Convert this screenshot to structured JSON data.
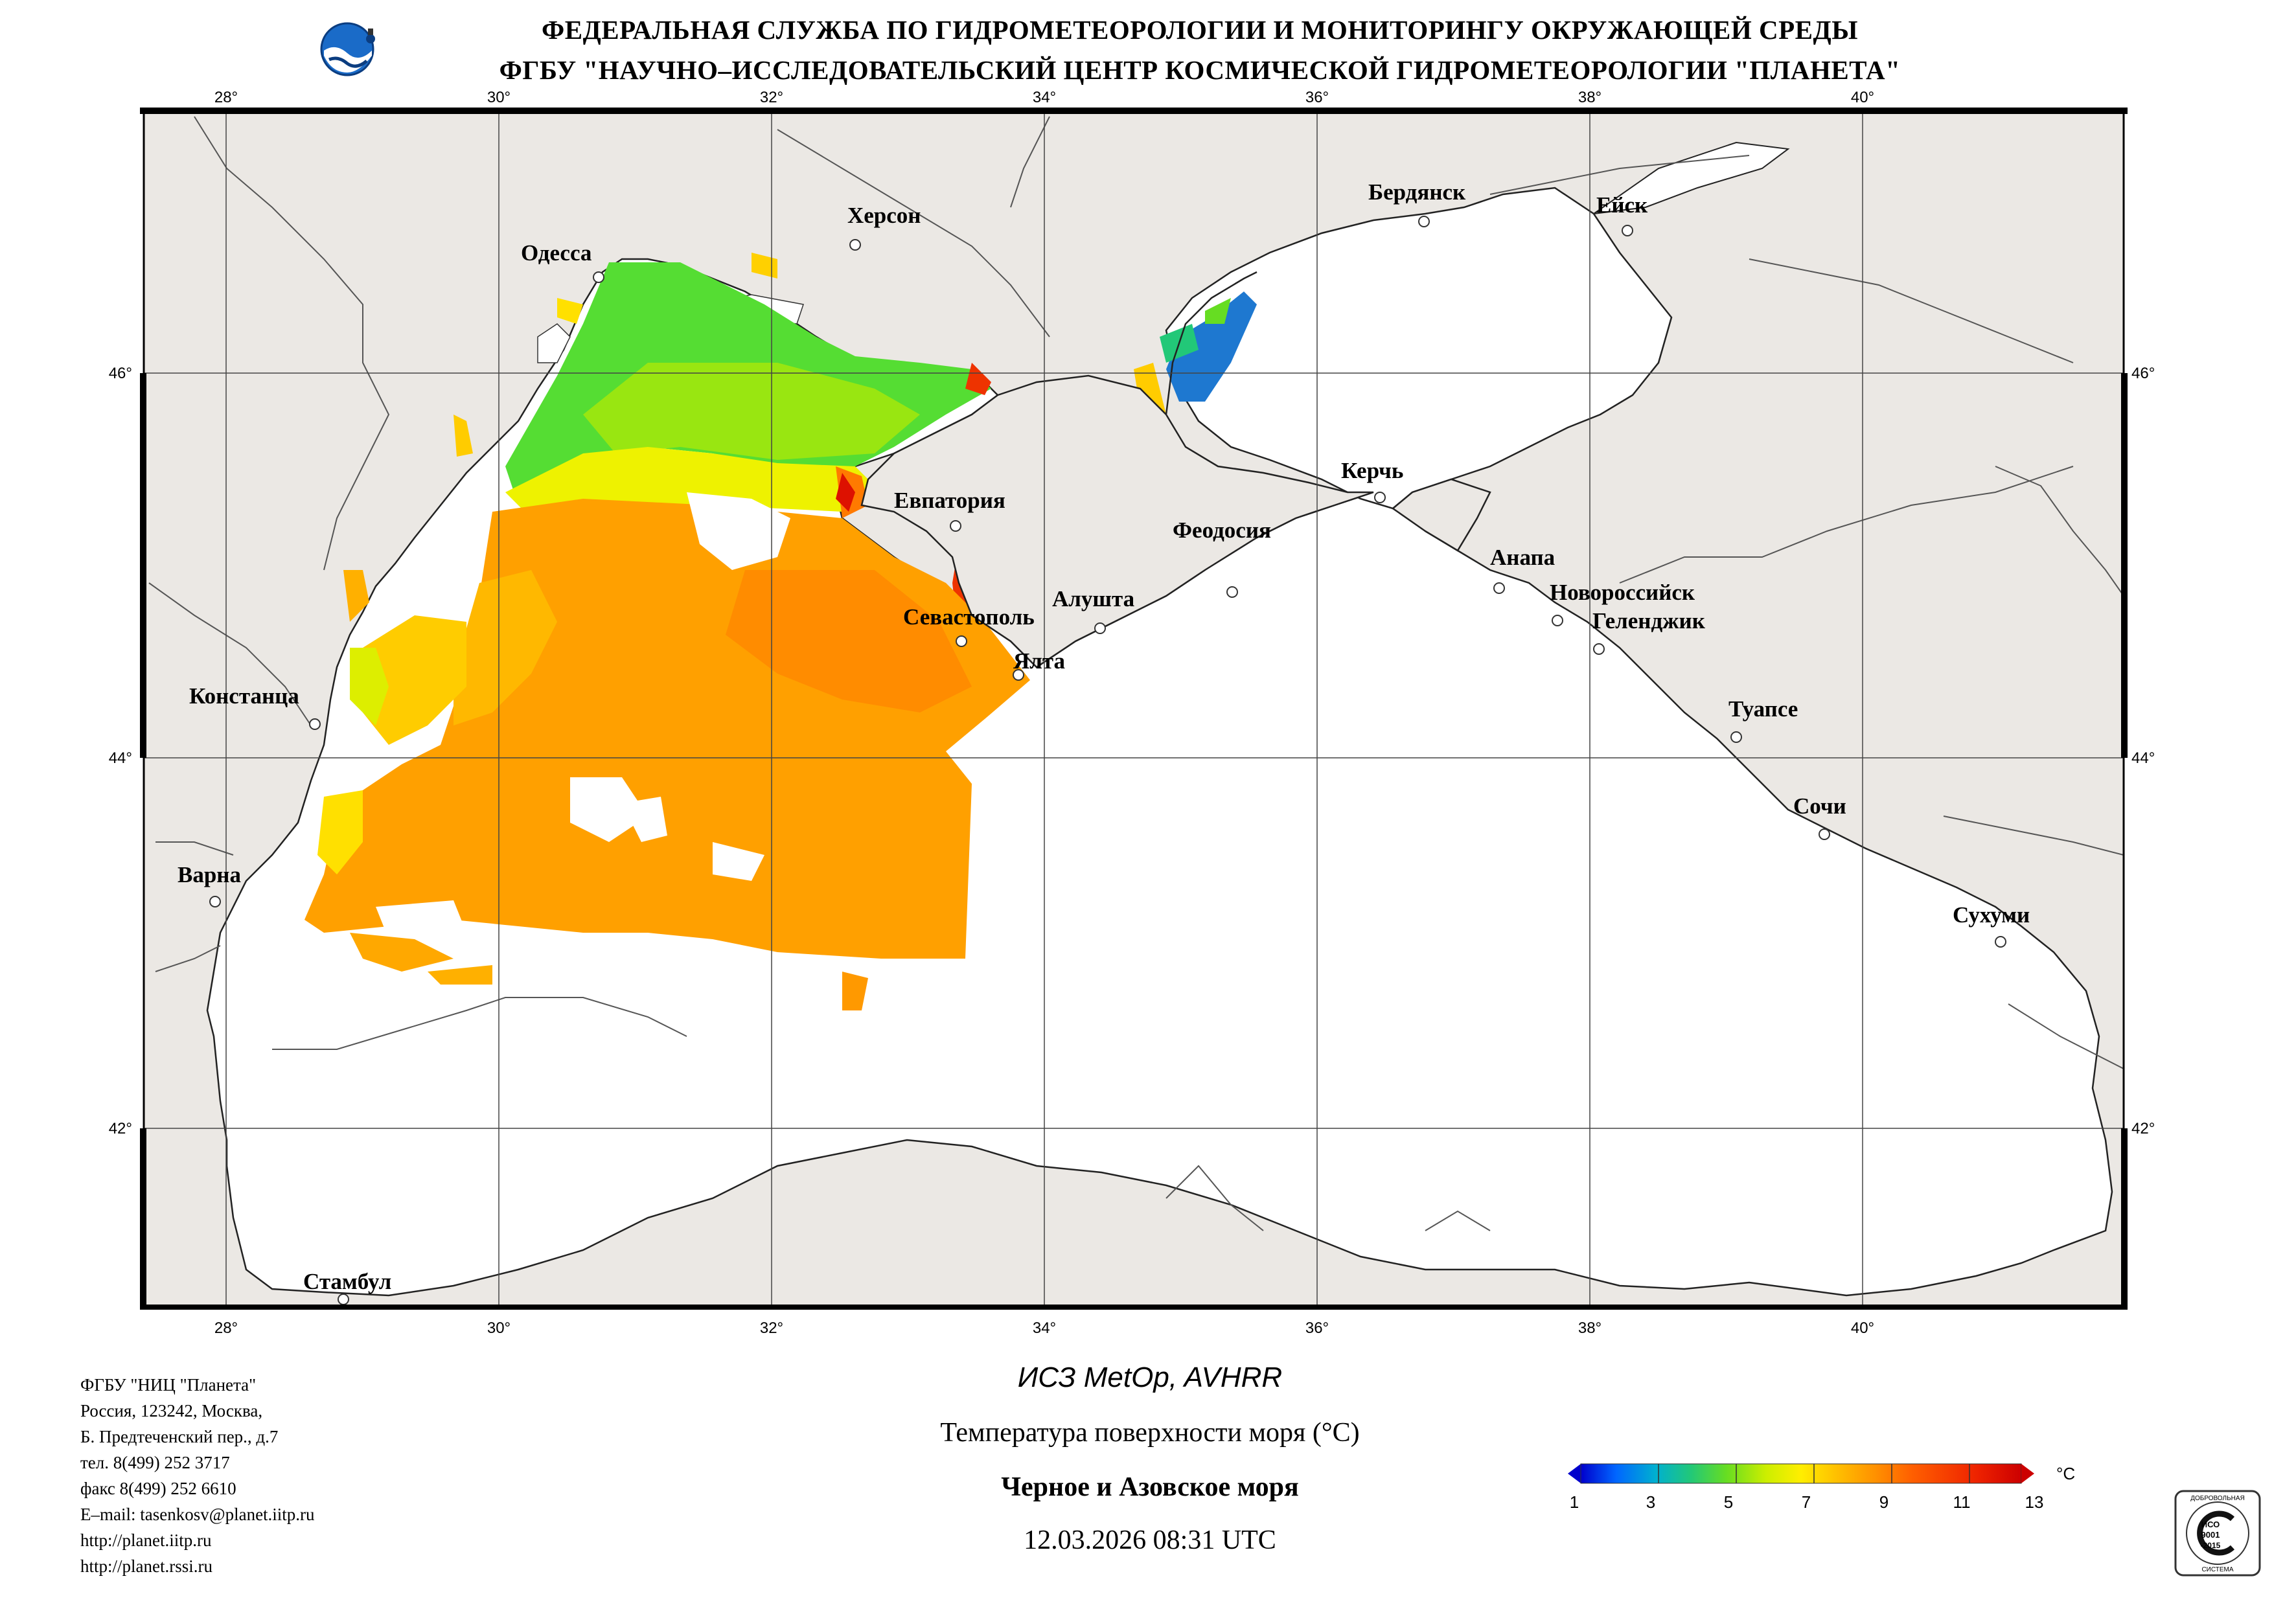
{
  "header": {
    "line1": "ФЕДЕРАЛЬНАЯ СЛУЖБА ПО ГИДРОМЕТЕОРОЛОГИИ И МОНИТОРИНГУ ОКРУЖАЮЩЕЙ СРЕДЫ",
    "line2": "ФГБУ \"НАУЧНО–ИССЛЕДОВАТЕЛЬСКИЙ ЦЕНТР КОСМИЧЕСКОЙ ГИДРОМЕТЕОРОЛОГИИ \"ПЛАНЕТА\""
  },
  "map": {
    "lon_ticks": [
      "28°",
      "30°",
      "32°",
      "34°",
      "36°",
      "38°",
      "40°"
    ],
    "lat_ticks": [
      "46°",
      "44°",
      "42°"
    ],
    "colors": {
      "land": "#ebe8e4",
      "sea": "#ffffff",
      "coast": "#222222",
      "grid": "#444444"
    },
    "cities": [
      {
        "name": "Одесса"
      },
      {
        "name": "Херсон"
      },
      {
        "name": "Бердянск"
      },
      {
        "name": "Ейск"
      },
      {
        "name": "Евпатория"
      },
      {
        "name": "Керчь"
      },
      {
        "name": "Феодосия"
      },
      {
        "name": "Анапа"
      },
      {
        "name": "Новороссийск"
      },
      {
        "name": "Геленджик"
      },
      {
        "name": "Севастополь"
      },
      {
        "name": "Алушта"
      },
      {
        "name": "Ялта"
      },
      {
        "name": "Констанца"
      },
      {
        "name": "Туапсе"
      },
      {
        "name": "Сочи"
      },
      {
        "name": "Варна"
      },
      {
        "name": "Сухуми"
      },
      {
        "name": "Стамбул"
      }
    ]
  },
  "info": {
    "org": "ФГБУ \"НИЦ \"Планета\"",
    "addr1": "Россия, 123242, Москва,",
    "addr2": "Б. Предтеченский пер., д.7",
    "phone": "тел. 8(499) 252 3717",
    "fax": "факс 8(499) 252 6610",
    "email": "E–mail: tasenkosv@planet.iitp.ru",
    "url1": "http://planet.iitp.ru",
    "url2": "http://planet.rssi.ru"
  },
  "product": {
    "satellite": "ИСЗ MetOp, AVHRR",
    "parameter": "Температура поверхности моря (°С)",
    "region": "Черное и Азовское моря",
    "datetime": "12.03.2026 08:31 UTC"
  },
  "colorbar": {
    "unit": "°C",
    "ticks": [
      "1",
      "3",
      "5",
      "7",
      "9",
      "11",
      "13"
    ],
    "colors": [
      "#0000cc",
      "#0066ff",
      "#00b0d0",
      "#22c878",
      "#66dd22",
      "#ccee00",
      "#ffee00",
      "#ffc000",
      "#ff9000",
      "#ff6000",
      "#ee2200",
      "#cc0000"
    ]
  },
  "badge": {
    "top": "ДОБРОВОЛЬНАЯ",
    "mid1": "ИСО",
    "mid2": "9001",
    "mid3": "-2015",
    "bottom": "СИСТЕМА"
  }
}
